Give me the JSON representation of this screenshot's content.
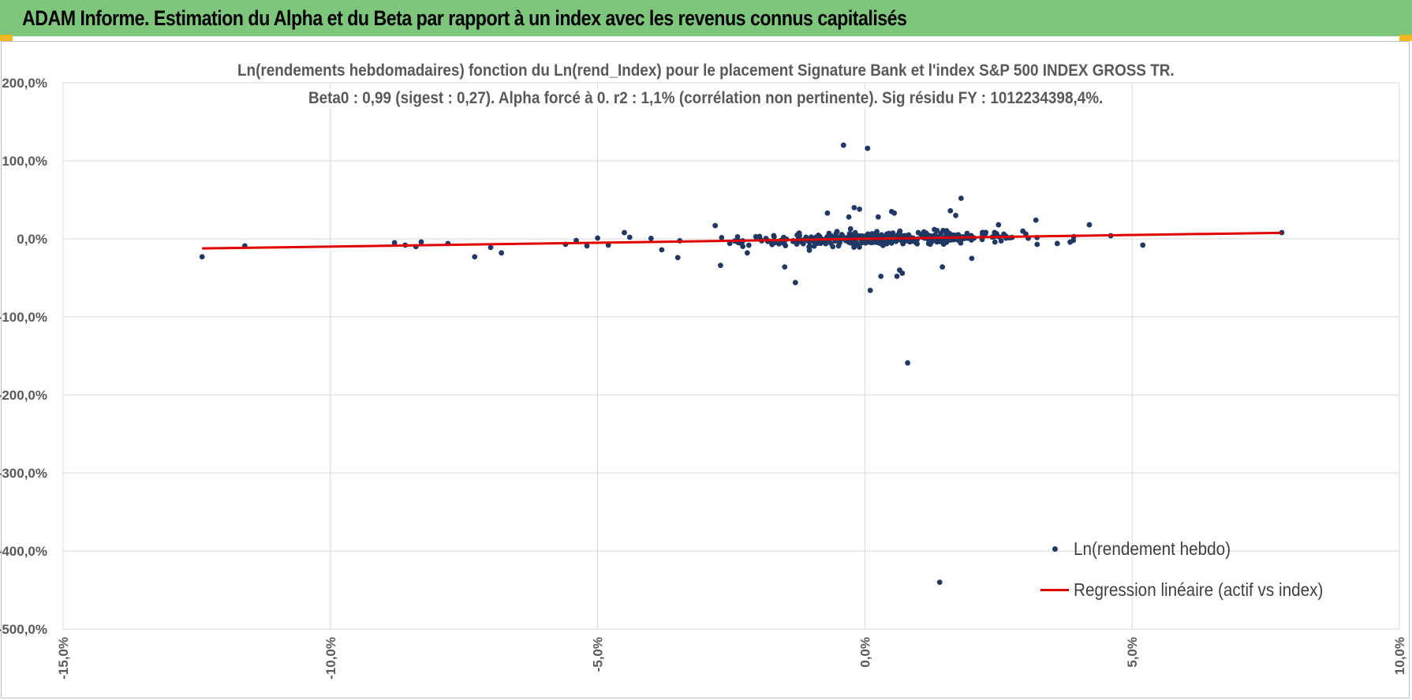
{
  "header": {
    "title": "ADAM Informe. Estimation du Alpha et du Beta par rapport à un index avec les revenus connus capitalisés",
    "background_color": "#7dc67c",
    "corner_color": "#f2b81f"
  },
  "chart_data": {
    "type": "scatter",
    "title_line1": "Ln(rendements hebdomadaires) fonction du Ln(rend_Index) pour le placement Signature Bank et l'index S&P 500 INDEX GROSS TR.",
    "title_line2": "Beta0 : 0,99 (sigest : 0,27). Alpha forcé à 0. r2 : 1,1% (corrélation non pertinente). Sig résidu FY : 1012234398,4%.",
    "xlabel": "",
    "ylabel": "",
    "xlim": [
      -15,
      10
    ],
    "ylim": [
      -500,
      200
    ],
    "grid": true,
    "x_ticks": [
      -15,
      -10,
      -5,
      0,
      5,
      10
    ],
    "x_tick_labels": [
      "-15,0%",
      "-10,0%",
      "-5,0%",
      "0,0%",
      "5,0%",
      "10,0%"
    ],
    "y_ticks": [
      200,
      100,
      0,
      -100,
      -200,
      -300,
      -400,
      -500
    ],
    "y_tick_labels": [
      "200,0%",
      "100,0%",
      "0,0%",
      "-100,0%",
      "-200,0%",
      "-300,0%",
      "-400,0%",
      "-500,0%"
    ],
    "legend_position": "bottom-right",
    "series": [
      {
        "name": "Ln(rendement hebdo)",
        "kind": "scatter",
        "color": "#203864",
        "cluster": {
          "count": 380,
          "x_mean": 0.3,
          "x_std": 1.3,
          "x_min": -4,
          "x_max": 4.8,
          "y_std": 4
        },
        "points": [
          [
            -12.4,
            -23
          ],
          [
            -11.6,
            -9
          ],
          [
            -8.8,
            -5
          ],
          [
            -8.6,
            -8
          ],
          [
            -8.4,
            -10
          ],
          [
            -8.3,
            -4
          ],
          [
            -7.8,
            -6
          ],
          [
            -7.3,
            -23
          ],
          [
            -7.0,
            -11
          ],
          [
            -6.8,
            -18
          ],
          [
            -5.6,
            -7
          ],
          [
            -5.4,
            -2
          ],
          [
            -5.2,
            -9
          ],
          [
            -5.0,
            1
          ],
          [
            -4.8,
            -8
          ],
          [
            -4.5,
            8
          ],
          [
            -4.4,
            2
          ],
          [
            -3.8,
            -14
          ],
          [
            -3.5,
            -24
          ],
          [
            -2.8,
            17
          ],
          [
            -2.7,
            -34
          ],
          [
            -2.2,
            -18
          ],
          [
            -1.5,
            -36
          ],
          [
            -1.3,
            -56
          ],
          [
            -0.7,
            33
          ],
          [
            -0.6,
            -10
          ],
          [
            -0.4,
            120
          ],
          [
            -0.3,
            28
          ],
          [
            -0.2,
            40
          ],
          [
            -0.1,
            38
          ],
          [
            0.05,
            116
          ],
          [
            0.1,
            -66
          ],
          [
            0.25,
            28
          ],
          [
            0.3,
            -48
          ],
          [
            0.5,
            35
          ],
          [
            0.55,
            33
          ],
          [
            0.6,
            -48
          ],
          [
            0.65,
            -40
          ],
          [
            0.7,
            -44
          ],
          [
            0.8,
            -159
          ],
          [
            1.0,
            8
          ],
          [
            1.3,
            12
          ],
          [
            1.4,
            -440
          ],
          [
            1.45,
            -36
          ],
          [
            1.6,
            36
          ],
          [
            1.7,
            30
          ],
          [
            1.8,
            52
          ],
          [
            2.0,
            -25
          ],
          [
            2.5,
            18
          ],
          [
            3.2,
            24
          ],
          [
            3.6,
            -6
          ],
          [
            3.9,
            -2
          ],
          [
            4.2,
            18
          ],
          [
            4.6,
            4
          ],
          [
            5.2,
            -8
          ],
          [
            7.8,
            8
          ]
        ]
      },
      {
        "name": "Regression linéaire (actif vs index)",
        "kind": "line",
        "color": "#e00000",
        "slope_beta": 0.99,
        "alpha": 0,
        "x_start": -12.4,
        "x_end": 7.8
      }
    ]
  }
}
